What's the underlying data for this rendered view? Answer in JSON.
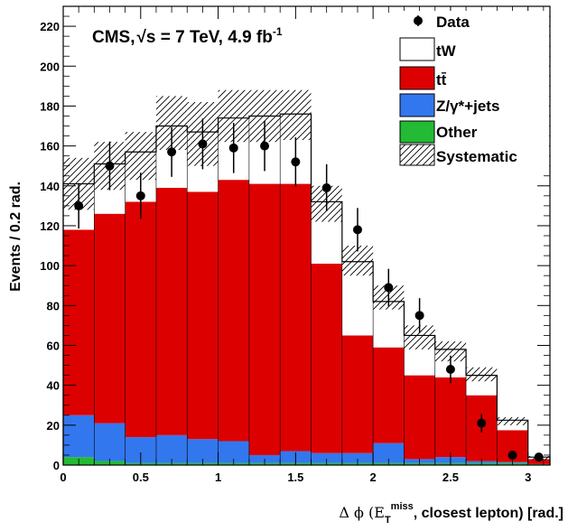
{
  "chart_data": {
    "type": "bar",
    "stacked": true,
    "annotation": "CMS, √s = 7 TeV, 4.9 fb⁻¹",
    "ylabel": "Events / 0.2 rad.",
    "xlabel": "Δϕ (E_T^miss, closest lepton) [rad.]",
    "xlim": [
      0,
      3.1416
    ],
    "ylim": [
      0,
      230
    ],
    "xticks": [
      "0",
      "0.5",
      "1",
      "1.5",
      "2",
      "2.5",
      "3"
    ],
    "yticks": [
      "0",
      "20",
      "40",
      "60",
      "80",
      "100",
      "120",
      "140",
      "160",
      "180",
      "200",
      "220"
    ],
    "bin_edges": [
      0,
      0.2,
      0.4,
      0.6,
      0.8,
      1.0,
      1.2,
      1.4,
      1.6,
      1.8,
      2.0,
      2.2,
      2.4,
      2.6,
      2.8,
      3.0,
      3.1416
    ],
    "legend_position": "top-right",
    "series": [
      {
        "name": "Other",
        "color": "#22bb33",
        "values": [
          4,
          2,
          1,
          1,
          1,
          1,
          1,
          1,
          1,
          1,
          1,
          1,
          1,
          1,
          1,
          0.5
        ]
      },
      {
        "name": "Z/γ*+jets",
        "color": "#3377ee",
        "values": [
          21,
          19,
          13,
          14,
          12,
          11,
          4,
          6,
          5,
          5,
          10,
          2,
          3,
          1,
          0.5,
          0
        ]
      },
      {
        "name": "tt̄",
        "color": "#dd0000",
        "values": [
          93,
          105,
          118,
          124,
          124,
          131,
          136,
          134,
          95,
          59,
          48,
          42,
          40,
          33,
          16,
          2.5
        ]
      },
      {
        "name": "tW",
        "color": "#ffffff",
        "values": [
          23,
          25,
          25,
          31,
          30,
          31,
          34,
          35,
          31,
          37,
          23,
          20,
          14,
          10,
          5,
          1
        ]
      }
    ],
    "systematic": {
      "name": "Systematic",
      "up": [
        154,
        162,
        167,
        185,
        182,
        188,
        188,
        188,
        140,
        110,
        90,
        70,
        62,
        49,
        24,
        4.5
      ],
      "down": [
        128,
        138,
        143,
        158,
        150,
        162,
        162,
        163,
        122,
        95,
        78,
        58,
        52,
        42,
        20,
        2.5
      ]
    },
    "data": {
      "name": "Data",
      "x": [
        0.1,
        0.3,
        0.5,
        0.7,
        0.9,
        1.1,
        1.3,
        1.5,
        1.7,
        1.9,
        2.1,
        2.3,
        2.5,
        2.7,
        2.9,
        3.07
      ],
      "y": [
        130,
        150,
        135,
        157,
        161,
        159,
        160,
        152,
        139,
        118,
        89,
        75,
        48,
        21,
        5,
        4
      ],
      "err": [
        11.4,
        12.2,
        11.6,
        12.5,
        12.7,
        12.6,
        12.6,
        12.3,
        11.8,
        10.9,
        9.4,
        8.7,
        6.9,
        4.6,
        2.2,
        2.0
      ]
    }
  },
  "legend": {
    "data": "Data",
    "tw": "tW",
    "ttbar": "tt̄",
    "zjets": "Z/γ*+jets",
    "other": "Other",
    "syst": "Systematic"
  },
  "labels": {
    "cms": "CMS,",
    "sqrt": "√s = 7 TeV, 4.9 fb",
    "lumi_sup": "-1",
    "ylabel": "Events / 0.2 rad.",
    "xlabel_delta": "Δ ϕ (E",
    "xlabel_sub": "T",
    "xlabel_sup": "miss",
    "xlabel_rest": ", closest lepton) [rad.]"
  }
}
